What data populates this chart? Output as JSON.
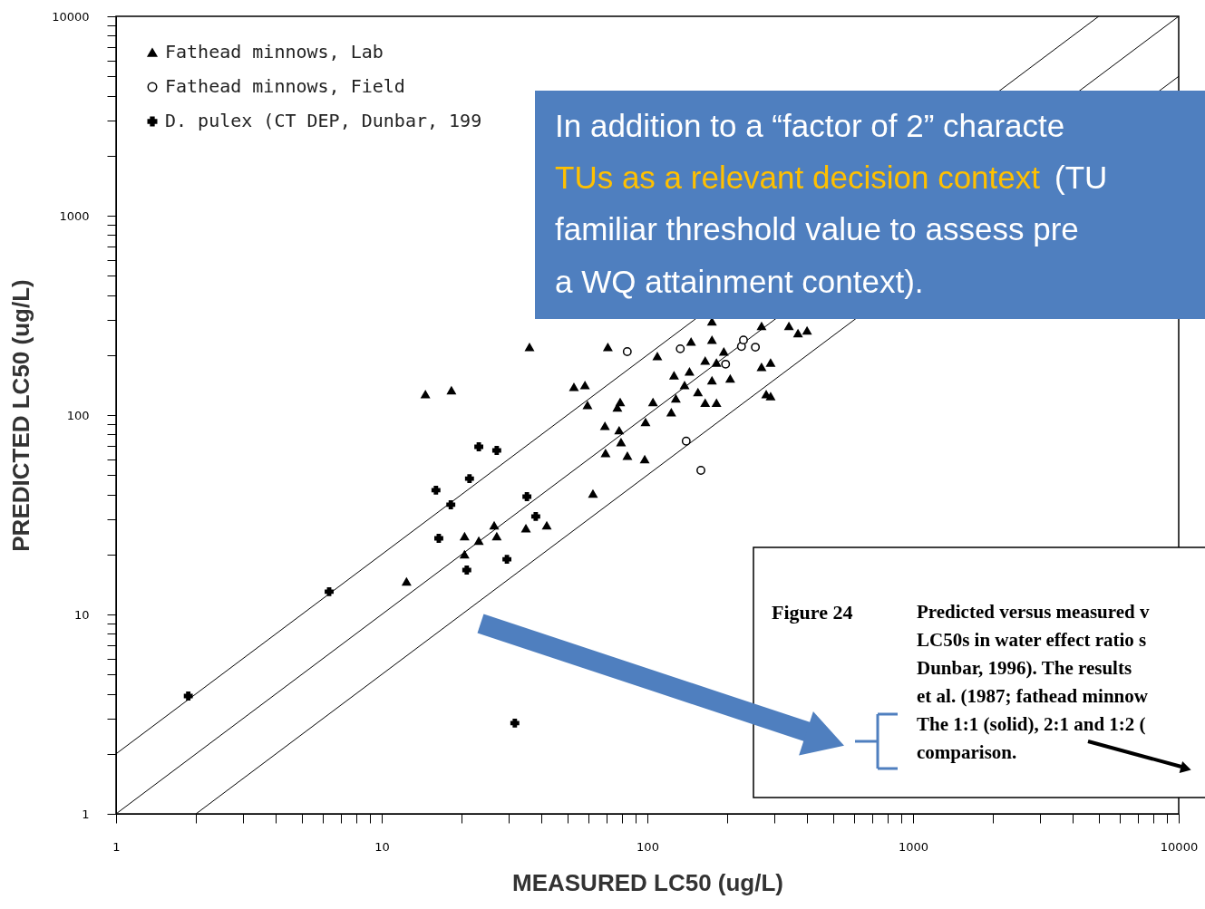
{
  "chart_data": {
    "type": "scatter",
    "xlabel": "MEASURED LC50 (ug/L)",
    "ylabel": "PREDICTED LC50 (ug/L)",
    "xlim": [
      1,
      10000
    ],
    "ylim": [
      1,
      10000
    ],
    "xticks": [
      1,
      {
        "value": 2,
        "label": null
      },
      {
        "value": 3,
        "label": null
      },
      {
        "value": 4,
        "label": null
      },
      {
        "value": 5,
        "label": null
      },
      {
        "value": 6,
        "label": null
      },
      {
        "value": 7,
        "label": null
      },
      {
        "value": 8,
        "label": null
      },
      {
        "value": 9,
        "label": null
      },
      10,
      {
        "value": 20,
        "label": null
      },
      {
        "value": 30,
        "label": null
      },
      {
        "value": 40,
        "label": null
      },
      {
        "value": 50,
        "label": null
      },
      {
        "value": 60,
        "label": null
      },
      {
        "value": 70,
        "label": null
      },
      {
        "value": 80,
        "label": null
      },
      {
        "value": 90,
        "label": null
      },
      100,
      {
        "value": 200,
        "label": null
      },
      {
        "value": 300,
        "label": null
      },
      {
        "value": 400,
        "label": null
      },
      {
        "value": 500,
        "label": null
      },
      {
        "value": 600,
        "label": null
      },
      {
        "value": 700,
        "label": null
      },
      {
        "value": 800,
        "label": null
      },
      {
        "value": 900,
        "label": null
      },
      1000,
      {
        "value": 2000,
        "label": null
      },
      {
        "value": 3000,
        "label": null
      },
      {
        "value": 4000,
        "label": null
      },
      {
        "value": 5000,
        "label": null
      },
      {
        "value": 6000,
        "label": null
      },
      {
        "value": 7000,
        "label": null
      },
      {
        "value": 8000,
        "label": null
      },
      {
        "value": 9000,
        "label": null
      },
      10000
    ],
    "yticks": [
      1,
      {
        "value": 2,
        "label": null
      },
      {
        "value": 3,
        "label": null
      },
      {
        "value": 4,
        "label": null
      },
      {
        "value": 5,
        "label": null
      },
      {
        "value": 6,
        "label": null
      },
      {
        "value": 7,
        "label": null
      },
      {
        "value": 8,
        "label": null
      },
      {
        "value": 9,
        "label": null
      },
      10,
      {
        "value": 20,
        "label": null
      },
      {
        "value": 30,
        "label": null
      },
      {
        "value": 40,
        "label": null
      },
      {
        "value": 50,
        "label": null
      },
      {
        "value": 60,
        "label": null
      },
      {
        "value": 70,
        "label": null
      },
      {
        "value": 80,
        "label": null
      },
      {
        "value": 90,
        "label": null
      },
      100,
      {
        "value": 200,
        "label": null
      },
      {
        "value": 300,
        "label": null
      },
      {
        "value": 400,
        "label": null
      },
      {
        "value": 500,
        "label": null
      },
      {
        "value": 600,
        "label": null
      },
      {
        "value": 700,
        "label": null
      },
      {
        "value": 800,
        "label": null
      },
      {
        "value": 900,
        "label": null
      },
      1000,
      {
        "value": 2000,
        "label": null
      },
      {
        "value": 3000,
        "label": null
      },
      {
        "value": 4000,
        "label": null
      },
      {
        "value": 5000,
        "label": null
      },
      {
        "value": 6000,
        "label": null
      },
      {
        "value": 7000,
        "label": null
      },
      {
        "value": 8000,
        "label": null
      },
      {
        "value": 9000,
        "label": null
      },
      10000
    ],
    "log": "xy",
    "grid": false,
    "legend": "top left",
    "series": [
      {
        "name": "Fathead minnows, Lab",
        "color": "#000000",
        "marker": "triangle",
        "x": [
          14.6,
          18.3,
          36,
          71,
          12.4,
          20.5,
          20.5,
          23.2,
          26.5,
          27.1,
          34.9,
          41.8,
          62.4,
          52.9,
          58.2,
          59.5,
          79,
          77.1,
          69.2,
          78.3,
          79.6,
          69.6,
          84.1,
          97.7,
          98.4,
          105,
          126,
          128,
          123,
          138,
          144,
          155,
          165,
          175,
          182,
          194,
          205,
          175,
          165,
          182,
          269,
          291,
          280,
          291,
          341,
          369,
          399,
          269,
          175,
          109,
          146
        ],
        "values": [
          127,
          133,
          219,
          219,
          14.6,
          20,
          24.6,
          23.4,
          27.9,
          24.6,
          27,
          27.9,
          40.3,
          138,
          141,
          112,
          116,
          109,
          88,
          83.7,
          73,
          64.4,
          62.4,
          59.9,
          92,
          116,
          158,
          121,
          103,
          141,
          165,
          130,
          187,
          149,
          183,
          208,
          152,
          238,
          115,
          115,
          174,
          183,
          127,
          124,
          279,
          257,
          265,
          279,
          294,
          197,
          233
        ]
      },
      {
        "name": "Fathead minnows, Field",
        "color": "#000000",
        "marker": "circle",
        "x": [
          84,
          133,
          140,
          159,
          197,
          226,
          255,
          230
        ],
        "values": [
          208,
          215,
          74,
          52.8,
          180,
          221,
          219,
          238
        ]
      },
      {
        "name": "D. pulex (CT DEP, Dunbar, 199",
        "color": "#000000",
        "marker": "cross",
        "x": [
          1.87,
          6.34,
          16.4,
          16,
          18.2,
          23.2,
          27.1,
          21.4,
          20.9,
          29.6,
          35.2,
          38,
          31.7
        ],
        "values": [
          3.9,
          13,
          24.1,
          42,
          35.5,
          69.3,
          66.5,
          48,
          16.7,
          18.9,
          39,
          31,
          2.85
        ]
      },
      {
        "type": "line",
        "color": "#000000",
        "x": [
          1,
          10000
        ],
        "values": [
          1,
          10000
        ]
      },
      {
        "type": "line",
        "color": "#000000",
        "x": [
          1,
          5000
        ],
        "values": [
          2,
          10000
        ]
      },
      {
        "type": "line",
        "color": "#000000",
        "x": [
          2,
          10000
        ],
        "values": [
          1,
          5000
        ]
      }
    ],
    "annotations": [
      "In addition to a “factor of 2” characte",
      "TUs as a relevant decision context",
      "(TU",
      "familiar threshold value to assess pre",
      "a WQ attainment context).",
      "Figure 24",
      "Predicted versus measured v",
      "LC50s in water effect ratio s",
      "Dunbar, 1996).  The results",
      "et al. (1987; fathead minnow",
      "The 1:1 (solid), 2:1 and 1:2 (",
      "comparison."
    ]
  }
}
